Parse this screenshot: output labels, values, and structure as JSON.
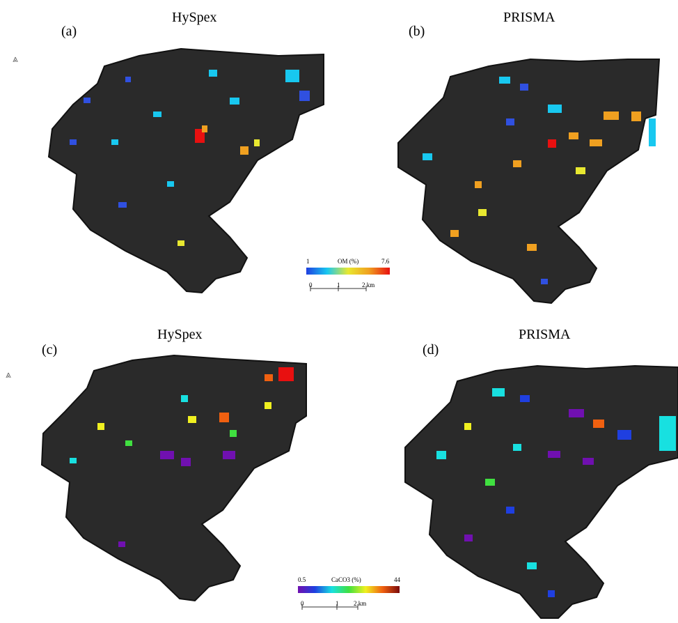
{
  "panels": [
    {
      "label": "(a)",
      "title": "HySpex",
      "variable": "om"
    },
    {
      "label": "(b)",
      "title": "PRISMA",
      "variable": "om"
    },
    {
      "label": "(c)",
      "title": "HySpex",
      "variable": "caco3"
    },
    {
      "label": "(d)",
      "title": "PRISMA",
      "variable": "caco3"
    }
  ],
  "north_arrow": "⩓",
  "legends": {
    "om": {
      "min": "1",
      "max": "7.6",
      "title": "OM (%)",
      "colors": [
        "#1f3fe0",
        "#18c8f0",
        "#e8e830",
        "#f0a020",
        "#e81010"
      ]
    },
    "caco3": {
      "min": "0.5",
      "max": "44",
      "title": "CaCO3 (%)",
      "colors": [
        "#7010b0",
        "#1f3fe0",
        "#18e0e0",
        "#40e040",
        "#f0f020",
        "#f06010",
        "#7a0a0a"
      ]
    }
  },
  "scale_bar": {
    "ticks": [
      "0",
      "1",
      "2 km"
    ]
  }
}
